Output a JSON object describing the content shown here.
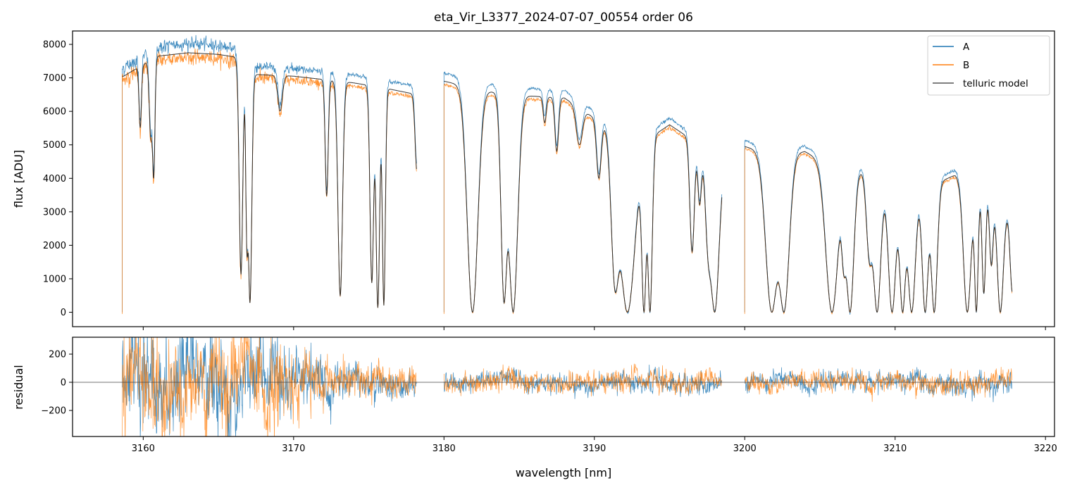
{
  "chart_data": [
    {
      "type": "line",
      "title": "eta_Vir_L3377_2024-07-07_00554  order 06",
      "ylabel": "flux [ADU]",
      "xlim": [
        3155.3,
        3220.6
      ],
      "ylim": [
        -430,
        8400
      ],
      "x_ticks": [
        3160,
        3170,
        3180,
        3190,
        3200,
        3210,
        3220
      ],
      "y_ticks": [
        0,
        1000,
        2000,
        3000,
        4000,
        5000,
        6000,
        7000,
        8000
      ],
      "y_tick_labels": [
        "0",
        "1000",
        "2000",
        "3000",
        "4000",
        "5000",
        "6000",
        "7000",
        "8000"
      ],
      "legend_position": "top-right",
      "colors": {
        "A": "#1f77b4",
        "B": "#ff7f0e",
        "telluric model": "#222222"
      },
      "series": [
        {
          "name": "A",
          "note_scale": 1.04
        },
        {
          "name": "B",
          "note_scale": 0.985
        },
        {
          "name": "telluric model"
        }
      ],
      "continuum_knots": {
        "x": [
          3158.7,
          3160.0,
          3161.0,
          3163.0,
          3165.0,
          3166.4,
          3167.5,
          3170.0,
          3172.0,
          3174.0,
          3176.0,
          3178.2,
          3180.0,
          3182.0,
          3184.0,
          3186.0,
          3188.0,
          3190.0,
          3193.0,
          3195.0,
          3197.0,
          3198.5,
          3200.0,
          3202.0,
          3204.0,
          3206.0,
          3208.0,
          3210.0,
          3212.0,
          3214.0,
          3216.0,
          3217.8
        ],
        "y": [
          7050,
          7400,
          7650,
          7750,
          7700,
          7600,
          7100,
          7050,
          6950,
          6850,
          6700,
          6500,
          6900,
          6700,
          6500,
          6450,
          6400,
          5800,
          5000,
          5600,
          5000,
          4800,
          4950,
          4700,
          4800,
          4300,
          4200,
          3800,
          3700,
          4100,
          3700,
          2900
        ]
      },
      "absorption_lines": [
        {
          "c": 3159.8,
          "d": 0.25,
          "w": 0.08
        },
        {
          "c": 3160.5,
          "d": 0.3,
          "w": 0.1
        },
        {
          "c": 3160.7,
          "d": 0.45,
          "w": 0.08
        },
        {
          "c": 3166.5,
          "d": 0.85,
          "w": 0.12
        },
        {
          "c": 3166.9,
          "d": 0.7,
          "w": 0.08
        },
        {
          "c": 3167.1,
          "d": 0.96,
          "w": 0.12
        },
        {
          "c": 3169.1,
          "d": 0.15,
          "w": 0.15
        },
        {
          "c": 3172.2,
          "d": 0.5,
          "w": 0.1
        },
        {
          "c": 3173.1,
          "d": 0.93,
          "w": 0.15
        },
        {
          "c": 3175.2,
          "d": 0.87,
          "w": 0.12
        },
        {
          "c": 3175.6,
          "d": 0.98,
          "w": 0.12
        },
        {
          "c": 3176.0,
          "d": 0.97,
          "w": 0.1
        },
        {
          "c": 3178.2,
          "d": 0.35,
          "w": 0.12
        },
        {
          "c": 3181.9,
          "d": 1.0,
          "w": 0.35
        },
        {
          "c": 3184.0,
          "d": 0.95,
          "w": 0.2
        },
        {
          "c": 3184.6,
          "d": 1.0,
          "w": 0.3
        },
        {
          "c": 3186.7,
          "d": 0.12,
          "w": 0.1
        },
        {
          "c": 3187.5,
          "d": 0.25,
          "w": 0.12
        },
        {
          "c": 3189.0,
          "d": 0.18,
          "w": 0.2
        },
        {
          "c": 3190.3,
          "d": 0.3,
          "w": 0.15
        },
        {
          "c": 3191.4,
          "d": 0.85,
          "w": 0.25
        },
        {
          "c": 3192.2,
          "d": 1.0,
          "w": 0.5
        },
        {
          "c": 3193.3,
          "d": 1.0,
          "w": 0.15
        },
        {
          "c": 3193.7,
          "d": 1.0,
          "w": 0.15
        },
        {
          "c": 3196.5,
          "d": 0.65,
          "w": 0.15
        },
        {
          "c": 3197.0,
          "d": 0.35,
          "w": 0.12
        },
        {
          "c": 3197.6,
          "d": 0.55,
          "w": 0.2
        },
        {
          "c": 3198.0,
          "d": 1.0,
          "w": 0.3
        },
        {
          "c": 3201.8,
          "d": 1.0,
          "w": 0.4
        },
        {
          "c": 3202.6,
          "d": 1.0,
          "w": 0.35
        },
        {
          "c": 3205.8,
          "d": 1.0,
          "w": 0.4
        },
        {
          "c": 3206.6,
          "d": 0.6,
          "w": 0.15
        },
        {
          "c": 3207.0,
          "d": 1.0,
          "w": 0.25
        },
        {
          "c": 3208.3,
          "d": 0.6,
          "w": 0.2
        },
        {
          "c": 3208.8,
          "d": 1.0,
          "w": 0.25
        },
        {
          "c": 3209.8,
          "d": 1.0,
          "w": 0.25
        },
        {
          "c": 3210.5,
          "d": 1.0,
          "w": 0.2
        },
        {
          "c": 3211.1,
          "d": 1.0,
          "w": 0.25
        },
        {
          "c": 3212.0,
          "d": 1.0,
          "w": 0.2
        },
        {
          "c": 3212.6,
          "d": 1.0,
          "w": 0.2
        },
        {
          "c": 3214.8,
          "d": 1.0,
          "w": 0.25
        },
        {
          "c": 3215.4,
          "d": 1.0,
          "w": 0.12
        },
        {
          "c": 3215.9,
          "d": 0.85,
          "w": 0.12
        },
        {
          "c": 3216.4,
          "d": 0.6,
          "w": 0.12
        },
        {
          "c": 3217.0,
          "d": 1.0,
          "w": 0.2
        },
        {
          "c": 3217.8,
          "d": 0.8,
          "w": 0.15
        }
      ],
      "segments": [
        [
          3158.6,
          3178.2
        ],
        [
          3180.0,
          3198.5
        ],
        [
          3200.0,
          3217.8
        ]
      ]
    },
    {
      "type": "line",
      "xlabel": "wavelength [nm]",
      "ylabel": "residual",
      "xlim": [
        3155.3,
        3220.6
      ],
      "ylim": [
        -385,
        320
      ],
      "x_ticks": [
        3160,
        3170,
        3180,
        3190,
        3200,
        3210,
        3220
      ],
      "x_tick_labels": [
        "3160",
        "3170",
        "3180",
        "3190",
        "3200",
        "3210",
        "3220"
      ],
      "y_ticks": [
        -200,
        0,
        200
      ],
      "y_tick_labels": [
        "−200",
        "0",
        "200"
      ],
      "zero_line": 0,
      "series": [
        {
          "name": "A"
        },
        {
          "name": "B"
        }
      ],
      "noise_envelope": {
        "x": [
          3158.6,
          3160,
          3163,
          3166,
          3168,
          3170,
          3173,
          3176,
          3178,
          3180,
          3185,
          3190,
          3195,
          3200,
          3205,
          3210,
          3217.8
        ],
        "amp": [
          260,
          240,
          220,
          210,
          200,
          150,
          90,
          70,
          60,
          45,
          50,
          45,
          55,
          40,
          45,
          45,
          60
        ]
      }
    }
  ],
  "legend": {
    "entries": [
      "A",
      "B",
      "telluric model"
    ]
  }
}
